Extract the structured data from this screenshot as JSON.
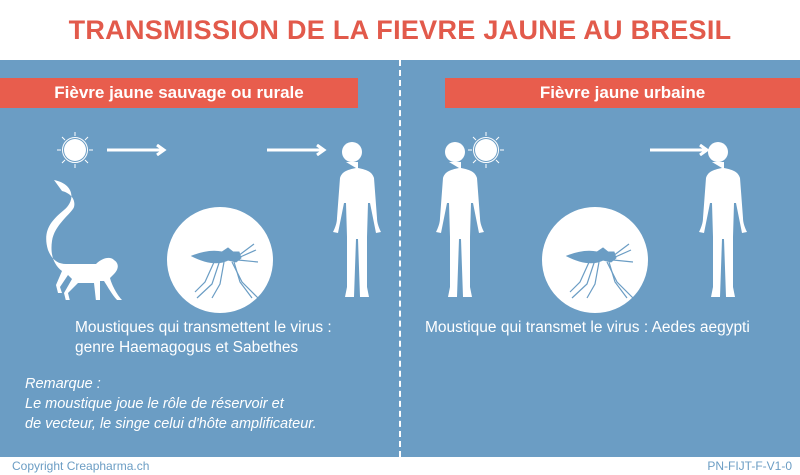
{
  "title": "TRANSMISSION DE LA FIEVRE JAUNE AU BRESIL",
  "left": {
    "heading": "Fièvre jaune sauvage ou rurale",
    "caption_line1": "Moustiques qui transmettent le virus :",
    "caption_line2": "genre Haemagogus et Sabethes",
    "remark_title": "Remarque :",
    "remark_line1": "Le moustique joue le rôle de réservoir et",
    "remark_line2": "de vecteur, le singe celui d'hôte amplificateur.",
    "icons": [
      "sun-icon",
      "arrow-right-icon",
      "monkey-icon",
      "mosquito-icon",
      "arrow-right-icon",
      "human-icon"
    ]
  },
  "right": {
    "heading": "Fièvre jaune urbaine",
    "caption": "Moustique qui transmet le virus : Aedes aegypti",
    "icons": [
      "human-icon",
      "sun-icon",
      "mosquito-icon",
      "arrow-right-icon",
      "human-icon"
    ]
  },
  "footer": {
    "copyright": "Copyright Creapharma.ch",
    "code": "PN-FIJT-F-V1-0"
  },
  "colors": {
    "accent": "#e85d4d",
    "background": "#6b9dc4",
    "title": "#e25a4b"
  }
}
